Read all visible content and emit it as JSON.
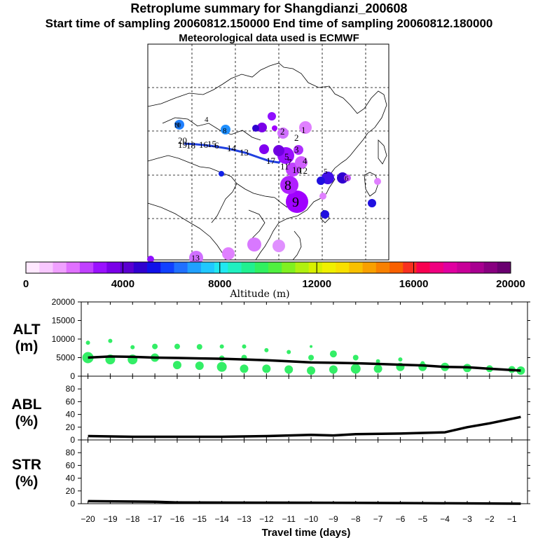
{
  "header": {
    "title": "Retroplume summary for Shangdianzi_200608",
    "sampling_line": "Start time of sampling 20060812.150000     End time of sampling 20060812.180000",
    "met_line": "Meteorological data used is ECMWF"
  },
  "colorbar": {
    "title": "Altitude (m)",
    "ticks": [
      "0",
      "4000",
      "8000",
      "12000",
      "16000",
      "20000"
    ],
    "colors": [
      "#ffe8ff",
      "#f8c8ff",
      "#f0a0ff",
      "#e070ff",
      "#c040ff",
      "#9a10ff",
      "#7a00e8",
      "#5a00d0",
      "#3000d0",
      "#1010e8",
      "#1040ff",
      "#2070ff",
      "#20a0ff",
      "#20c8ff",
      "#20e8f0",
      "#20f0c0",
      "#20f090",
      "#30f060",
      "#50f040",
      "#80f020",
      "#b0f010",
      "#d8f000",
      "#f0f000",
      "#f8e000",
      "#f8c000",
      "#f8a000",
      "#f88000",
      "#f86000",
      "#f83020",
      "#f80050",
      "#f00080",
      "#e000a0",
      "#c80098",
      "#a80090",
      "#880080",
      "#6a0070"
    ]
  },
  "map": {
    "labels": [
      "1",
      "2",
      "2",
      "3",
      "4",
      "5",
      "6",
      "7",
      "8",
      "9",
      "10",
      "11",
      "12",
      "13",
      "14",
      "15",
      "16",
      "17",
      "18",
      "19",
      "20",
      "5",
      "6",
      "8",
      "9",
      "10",
      "11",
      "13",
      "4"
    ]
  },
  "chart_data": [
    {
      "type": "line",
      "panel": "ALT",
      "ylabel": "ALT (m)",
      "ylim": [
        0,
        20000
      ],
      "yticks": [
        "20000",
        "15000",
        "10000",
        "5000",
        "0"
      ],
      "x": [
        -20,
        -19,
        -18,
        -17,
        -16,
        -15,
        -14,
        -13,
        -12,
        -11,
        -10,
        -9,
        -8,
        -7,
        -6,
        -5,
        -4,
        -3,
        -2,
        -0.6
      ],
      "series": [
        {
          "name": "mean altitude",
          "values": [
            5000,
            5300,
            5200,
            5000,
            4900,
            4800,
            4700,
            4500,
            4300,
            4000,
            3700,
            3600,
            3500,
            3300,
            3100,
            2900,
            2500,
            2400,
            2000,
            1500
          ]
        }
      ],
      "scatter_x": [
        -20,
        -20,
        -19,
        -19,
        -18,
        -18,
        -17,
        -17,
        -16,
        -16,
        -15,
        -15,
        -14,
        -14,
        -14,
        -13,
        -13,
        -13,
        -12,
        -12,
        -11,
        -11,
        -10,
        -10,
        -10,
        -9,
        -9,
        -8,
        -8,
        -7,
        -7,
        -6,
        -6,
        -5,
        -5,
        -4,
        -3,
        -2,
        -1,
        -0.6
      ],
      "scatter_y": [
        5000,
        9000,
        4500,
        9500,
        4500,
        7800,
        5000,
        8000,
        3000,
        8000,
        2800,
        7900,
        2500,
        4800,
        8000,
        2000,
        5000,
        8000,
        2000,
        7000,
        1800,
        6500,
        1500,
        5000,
        8000,
        1800,
        6000,
        2000,
        5000,
        2000,
        4000,
        2500,
        4500,
        2500,
        3500,
        2500,
        2200,
        2000,
        1800,
        1500
      ]
    },
    {
      "type": "line",
      "panel": "ABL",
      "ylabel": "ABL (%)",
      "ylim": [
        0,
        100
      ],
      "yticks": [
        "80",
        "60",
        "40",
        "20",
        "0"
      ],
      "x": [
        -20,
        -18,
        -16,
        -14,
        -12,
        -10,
        -9,
        -8,
        -6,
        -4,
        -3,
        -2,
        -0.6
      ],
      "series": [
        {
          "name": "ABL fraction",
          "values": [
            6,
            5,
            5,
            5,
            6,
            8,
            7,
            9,
            10,
            12,
            20,
            26,
            36
          ]
        }
      ]
    },
    {
      "type": "line",
      "panel": "STR",
      "ylabel": "STR (%)",
      "ylim": [
        0,
        100
      ],
      "yticks": [
        "80",
        "60",
        "40",
        "20",
        "0"
      ],
      "xlabel": "Travel time (days)",
      "xticks": [
        "-20",
        "-19",
        "-18",
        "-17",
        "-16",
        "-15",
        "-14",
        "-13",
        "-12",
        "-11",
        "-10",
        "-9",
        "-8",
        "-7",
        "-6",
        "-5",
        "-4",
        "-3",
        "-2",
        "-1"
      ],
      "x": [
        -20,
        -17,
        -16,
        -6,
        -0.6
      ],
      "series": [
        {
          "name": "stratospheric fraction",
          "values": [
            4,
            3,
            2,
            1,
            0
          ]
        }
      ]
    }
  ]
}
